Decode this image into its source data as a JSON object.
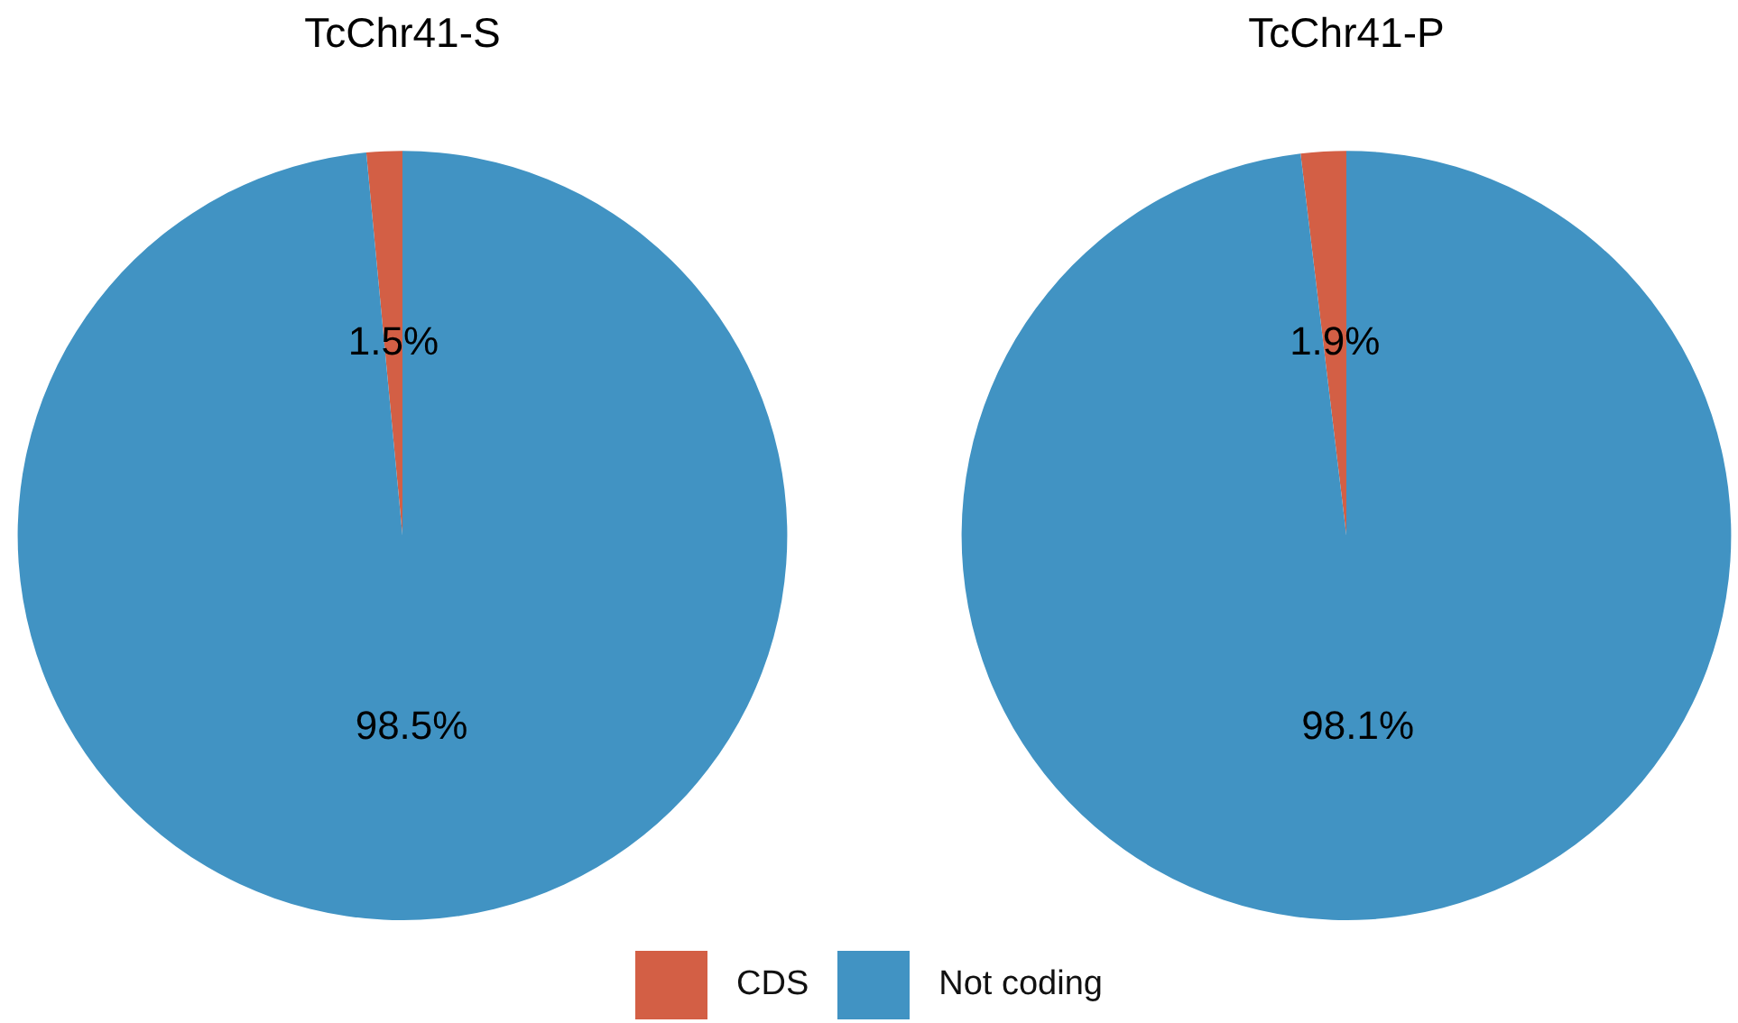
{
  "chart_data": [
    {
      "type": "pie",
      "title": "TcChr41-S",
      "categories": [
        "CDS",
        "Not coding"
      ],
      "values": [
        1.5,
        98.5
      ],
      "colors": [
        "#d35f45",
        "#4193c3"
      ],
      "value_labels": [
        "1.5%",
        "98.5%"
      ],
      "legend": "bottom"
    },
    {
      "type": "pie",
      "title": "TcChr41-P",
      "categories": [
        null,
        null
      ],
      "values": [
        1.9,
        98.1
      ],
      "colors": [
        "#d35f45",
        "#4193c3"
      ],
      "value_labels": [
        "1.9%",
        "98.1%"
      ]
    }
  ]
}
